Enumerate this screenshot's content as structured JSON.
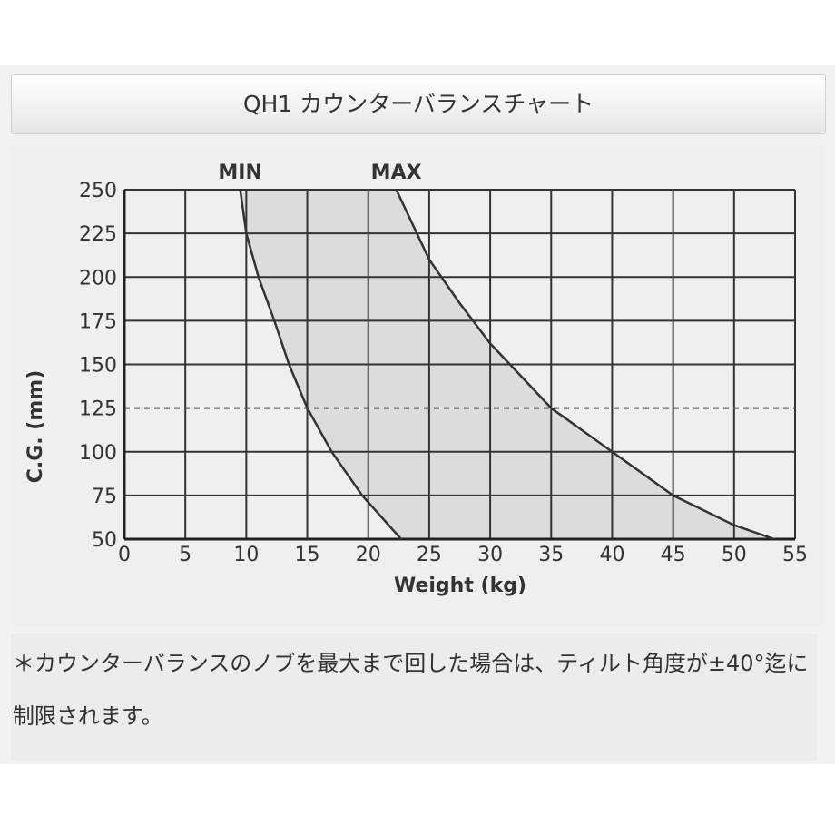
{
  "header": {
    "title": "QH1 カウンターバランスチャート"
  },
  "chart_data": {
    "type": "area",
    "x_label": "Weight (kg)",
    "y_label": "C.G. (mm)",
    "series": [
      {
        "name": "MIN",
        "color": "#333333",
        "x": [
          9.5,
          10,
          11,
          12.3,
          13.5,
          15,
          17,
          19.5,
          22.7
        ],
        "values": [
          250,
          225,
          200,
          175,
          150,
          125,
          100,
          75,
          50
        ]
      },
      {
        "name": "MAX",
        "color": "#333333",
        "x": [
          22.3,
          25,
          27.5,
          30,
          35,
          40,
          45,
          50,
          53.3
        ],
        "values": [
          250,
          210,
          185,
          162,
          125,
          100,
          75,
          58,
          50
        ]
      }
    ],
    "fill": "#dcdcdc",
    "hline": 125,
    "xlim": [
      0,
      55
    ],
    "xticks": [
      0,
      5,
      10,
      15,
      20,
      25,
      30,
      35,
      40,
      45,
      50,
      55
    ],
    "ylim": [
      50,
      250
    ],
    "yticks": [
      50,
      75,
      100,
      125,
      150,
      175,
      200,
      225,
      250
    ],
    "grid": true
  },
  "note": "＊カウンターバランスのノブを最大まで回した場合は、ティルト角度が±40°迄に制限されます。"
}
